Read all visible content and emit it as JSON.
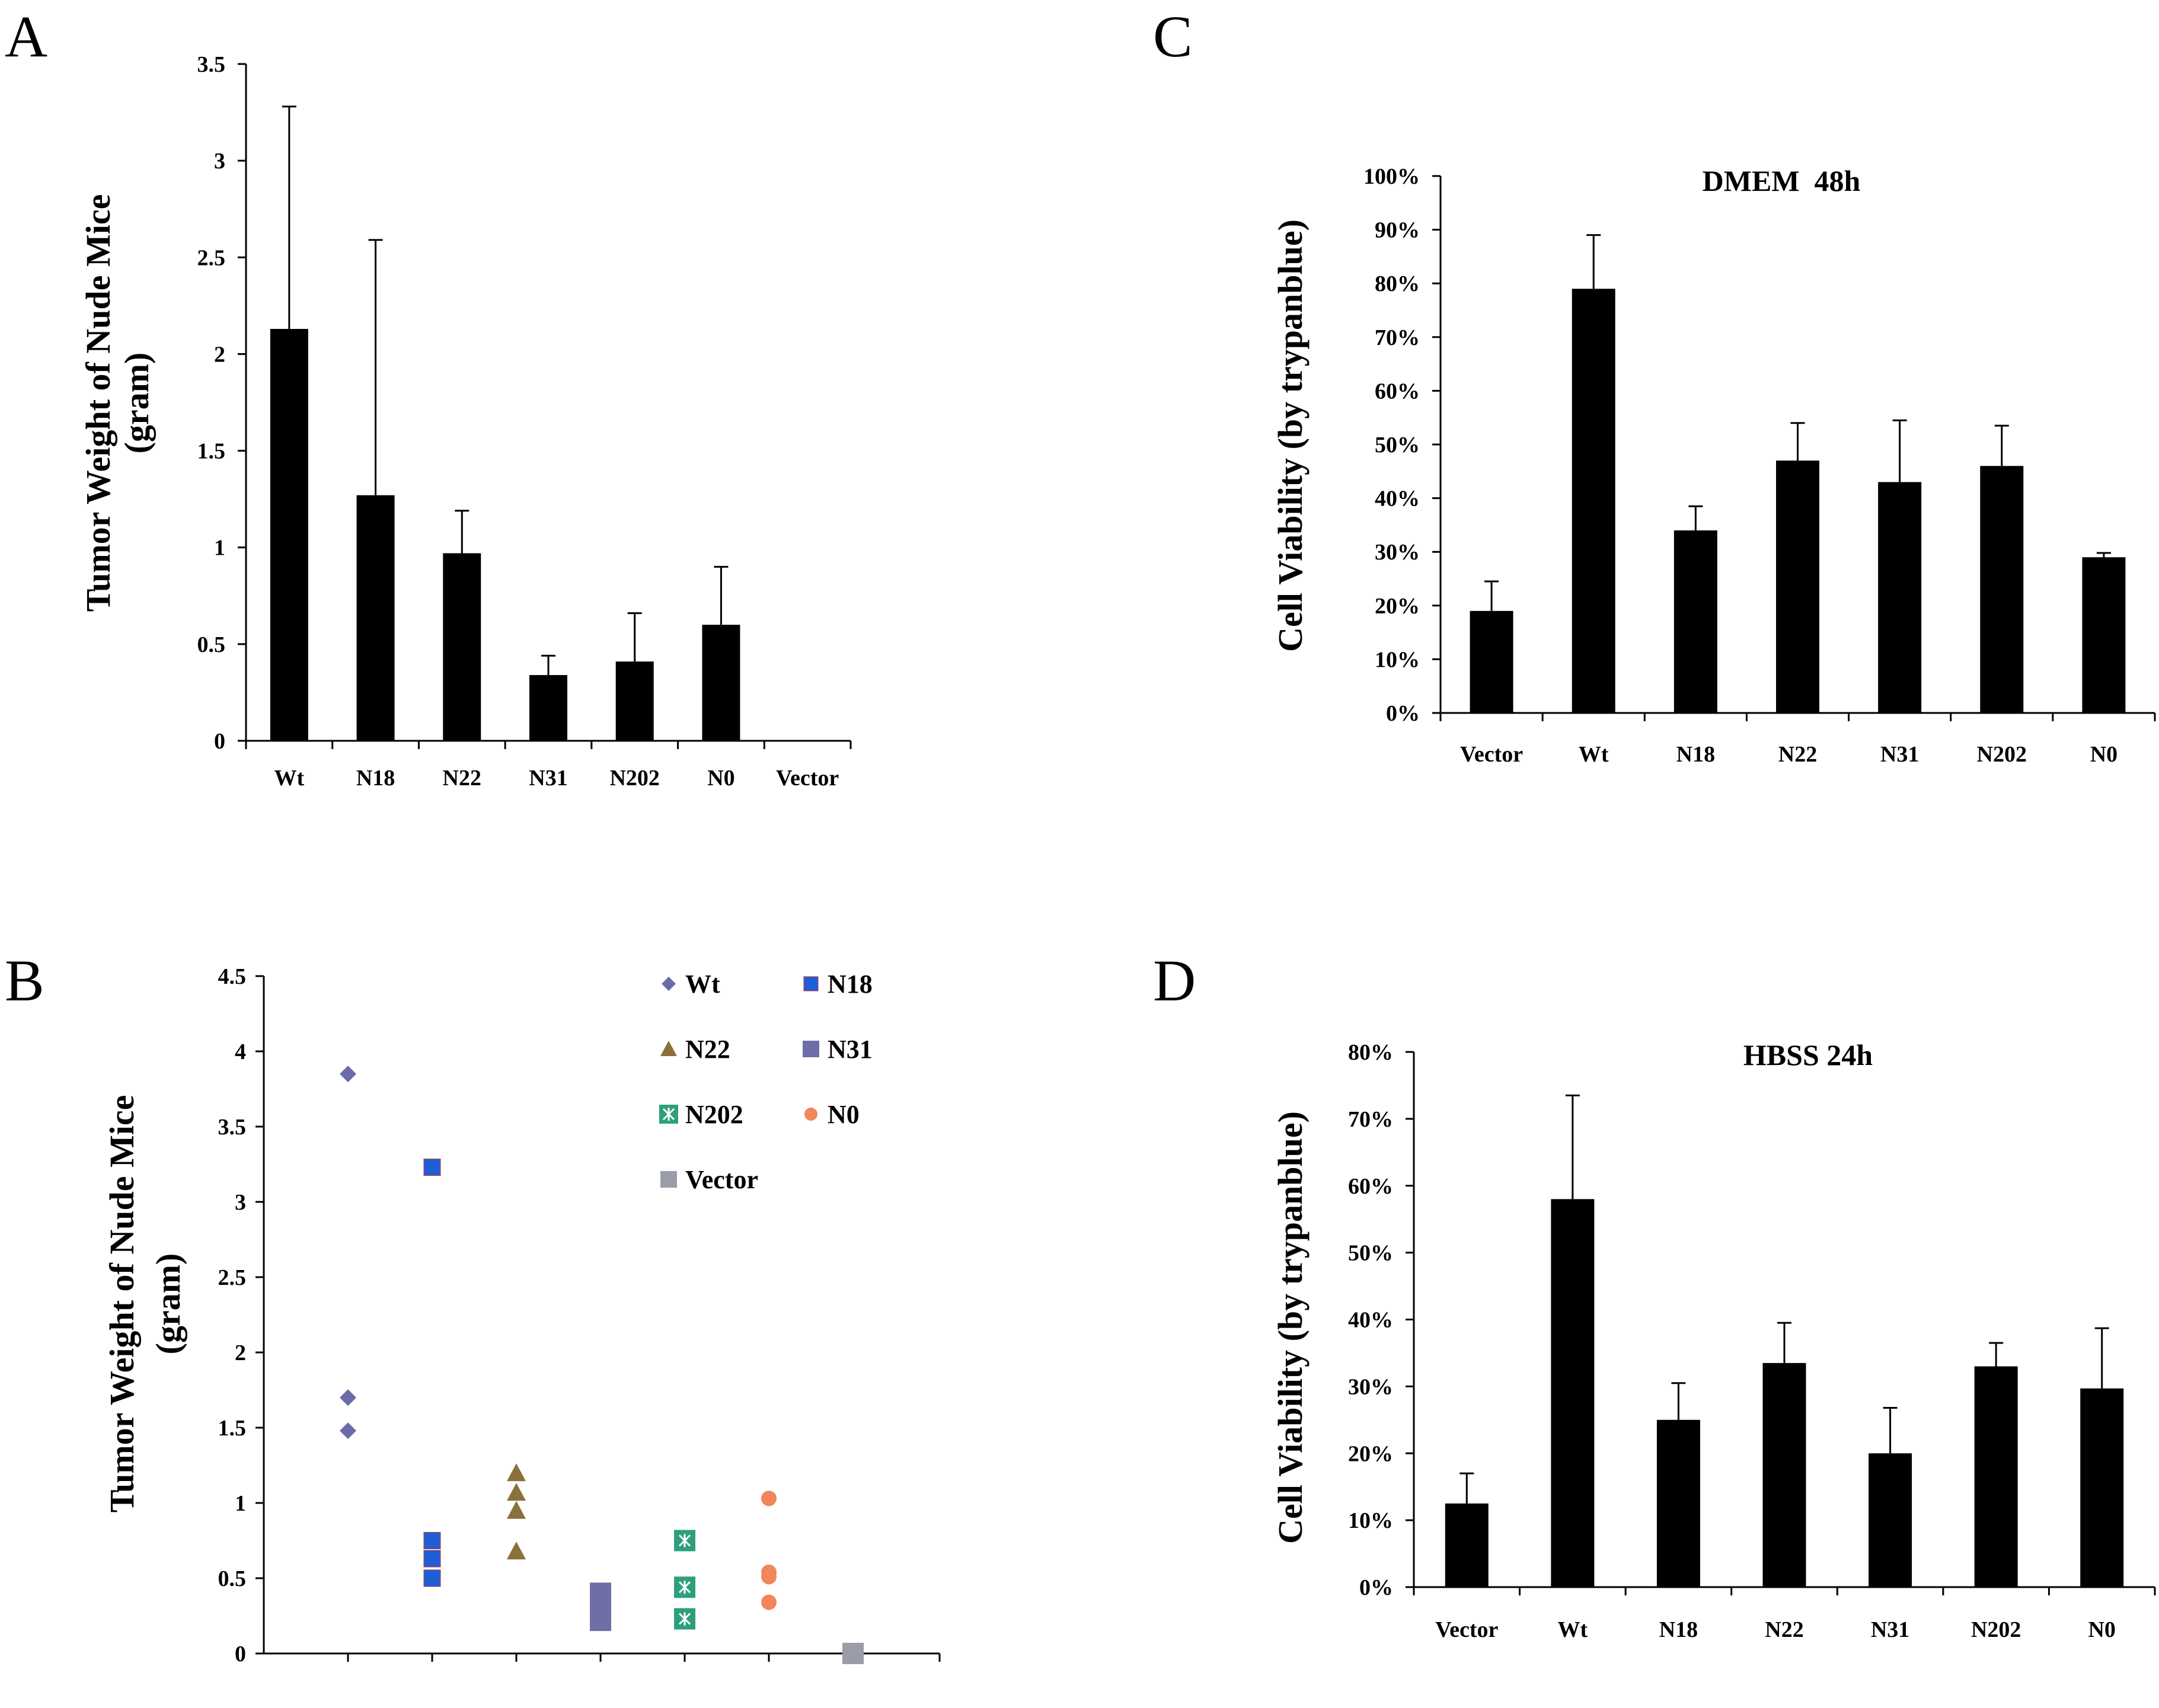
{
  "panels": {
    "A": {
      "letter": "A"
    },
    "B": {
      "letter": "B"
    },
    "C": {
      "letter": "C"
    },
    "D": {
      "letter": "D"
    }
  },
  "chart_data": [
    {
      "id": "A",
      "type": "bar",
      "title": "",
      "ylabel_lines": [
        "Tumor Weight of Nude Mice",
        "(gram)"
      ],
      "categories": [
        "Wt",
        "N18",
        "N22",
        "N31",
        "N202",
        "N0",
        "Vector"
      ],
      "values": [
        2.13,
        1.27,
        0.97,
        0.34,
        0.41,
        0.6,
        0
      ],
      "errors": [
        1.15,
        1.32,
        0.22,
        0.1,
        0.25,
        0.3,
        0
      ],
      "ylim": [
        0,
        3.5
      ],
      "yticks": [
        0,
        0.5,
        1,
        1.5,
        2,
        2.5,
        3,
        3.5
      ],
      "ytick_labels": [
        "0",
        "0.5",
        "1",
        "1.5",
        "2",
        "2.5",
        "3",
        "3.5"
      ],
      "bar_color": "#000000",
      "grid": false
    },
    {
      "id": "B",
      "type": "scatter",
      "title": "",
      "ylabel_lines": [
        "Tumor Weight of Nude Mice",
        "(gram)"
      ],
      "ylim": [
        0,
        4.5
      ],
      "yticks": [
        0,
        0.5,
        1,
        1.5,
        2,
        2.5,
        3,
        3.5,
        4,
        4.5
      ],
      "ytick_labels": [
        "0",
        "0.5",
        "1",
        "1.5",
        "2",
        "2.5",
        "3",
        "3.5",
        "4",
        "4.5"
      ],
      "grid": false,
      "legend": "top-right",
      "series": [
        {
          "name": "Wt",
          "x": 1,
          "values": [
            3.85,
            1.7,
            1.48
          ],
          "marker": "diamond",
          "color": "#6b6ba8"
        },
        {
          "name": "N18",
          "x": 2,
          "values": [
            3.23,
            0.75,
            0.63,
            0.5
          ],
          "marker": "square-small",
          "color": "#1f5fd6"
        },
        {
          "name": "N22",
          "x": 3,
          "values": [
            1.2,
            1.07,
            0.95,
            0.68
          ],
          "marker": "triangle",
          "color": "#8a7039"
        },
        {
          "name": "N31",
          "x": 4,
          "values": [
            0.4,
            0.32,
            0.22
          ],
          "marker": "square",
          "color": "#6e6fa6"
        },
        {
          "name": "N202",
          "x": 5,
          "values": [
            0.75,
            0.44,
            0.23
          ],
          "marker": "square-star",
          "color": "#2e9f7c"
        },
        {
          "name": "N0",
          "x": 6,
          "values": [
            1.03,
            0.54,
            0.51,
            0.34
          ],
          "marker": "circle",
          "color": "#f0865a"
        },
        {
          "name": "Vector",
          "x": 7,
          "values": [
            0
          ],
          "marker": "square",
          "color": "#9a9ca8"
        }
      ]
    },
    {
      "id": "C",
      "type": "bar",
      "title": "DMEM  48h",
      "ylabel_lines": [
        "Cell Viability (by trypanblue)"
      ],
      "categories": [
        "Vector",
        "Wt",
        "N18",
        "N22",
        "N31",
        "N202",
        "N0"
      ],
      "values": [
        19,
        79,
        34,
        47,
        43,
        46,
        29
      ],
      "errors": [
        5.5,
        10,
        4.5,
        7,
        11.5,
        7.5,
        0.8
      ],
      "ylim": [
        0,
        100
      ],
      "yticks": [
        0,
        10,
        20,
        30,
        40,
        50,
        60,
        70,
        80,
        90,
        100
      ],
      "ytick_labels": [
        "0%",
        "10%",
        "20%",
        "30%",
        "40%",
        "50%",
        "60%",
        "70%",
        "80%",
        "90%",
        "100%"
      ],
      "bar_color": "#000000",
      "grid": false
    },
    {
      "id": "D",
      "type": "bar",
      "title": "HBSS 24h",
      "ylabel_lines": [
        "Cell Viability (by trypanblue)"
      ],
      "categories": [
        "Vector",
        "Wt",
        "N18",
        "N22",
        "N31",
        "N202",
        "N0"
      ],
      "values": [
        12.5,
        58,
        25,
        33.5,
        20,
        33,
        29.7
      ],
      "errors": [
        4.5,
        15.5,
        5.5,
        6,
        6.8,
        3.5,
        9
      ],
      "ylim": [
        0,
        80
      ],
      "yticks": [
        0,
        10,
        20,
        30,
        40,
        50,
        60,
        70,
        80
      ],
      "ytick_labels": [
        "0%",
        "10%",
        "20%",
        "30%",
        "40%",
        "50%",
        "60%",
        "70%",
        "80%"
      ],
      "bar_color": "#000000",
      "grid": false
    }
  ]
}
